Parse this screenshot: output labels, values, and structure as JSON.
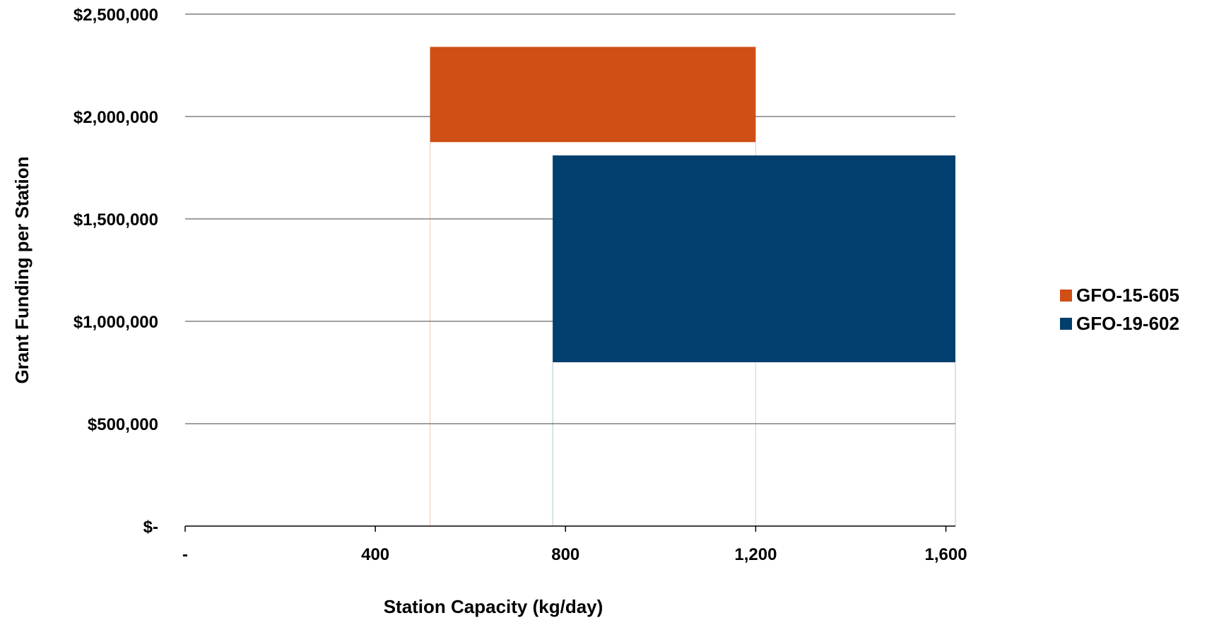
{
  "chart_data": {
    "type": "box",
    "xlabel": "Station Capacity (kg/day)",
    "ylabel": "Grant Funding per Station",
    "xlim": [
      0,
      1620
    ],
    "ylim": [
      0,
      2500000
    ],
    "x_ticks": [
      {
        "value": 0,
        "label": "-"
      },
      {
        "value": 400,
        "label": "400"
      },
      {
        "value": 800,
        "label": "800"
      },
      {
        "value": 1200,
        "label": "1,200"
      },
      {
        "value": 1600,
        "label": "1,600"
      }
    ],
    "y_ticks": [
      {
        "value": 0,
        "label": "$-"
      },
      {
        "value": 500000,
        "label": "$500,000"
      },
      {
        "value": 1000000,
        "label": "$1,000,000"
      },
      {
        "value": 1500000,
        "label": "$1,500,000"
      },
      {
        "value": 2000000,
        "label": "$2,000,000"
      },
      {
        "value": 2500000,
        "label": "$2,500,000"
      }
    ],
    "grid": true,
    "legend_position": "right",
    "series": [
      {
        "name": "GFO-15-605",
        "color": "#cf4f15",
        "x_min": 515,
        "x_max": 1200,
        "y_min": 1875000,
        "y_max": 2340000
      },
      {
        "name": "GFO-19-602",
        "color": "#003f6e",
        "x_min": 773,
        "x_max": 1620,
        "y_min": 800000,
        "y_max": 1810000
      }
    ]
  }
}
